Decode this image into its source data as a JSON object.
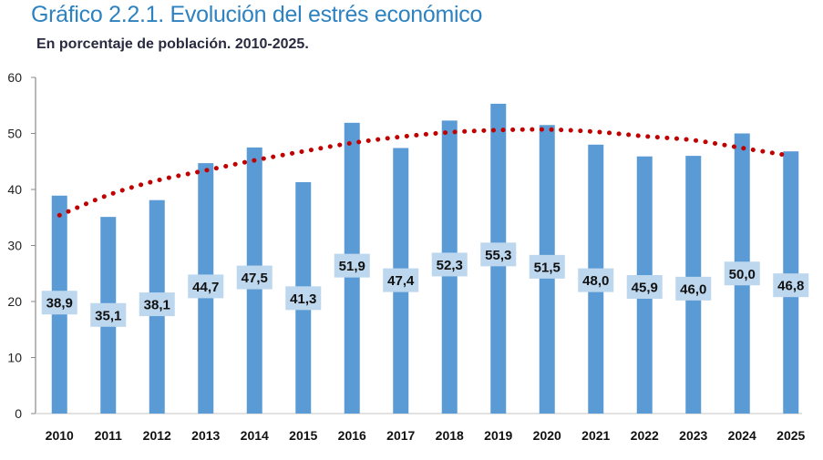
{
  "header": {
    "title": "Gráfico 2.2.1. Evolución del estrés económico",
    "subtitle": "En porcentaje de población. 2010-2025."
  },
  "chart_data": {
    "type": "bar",
    "title": "Gráfico 2.2.1. Evolución del estrés económico",
    "subtitle": "En porcentaje de población. 2010-2025.",
    "xlabel": "",
    "ylabel": "",
    "categories": [
      "2010",
      "2011",
      "2012",
      "2013",
      "2014",
      "2015",
      "2016",
      "2017",
      "2018",
      "2019",
      "2020",
      "2021",
      "2022",
      "2023",
      "2024",
      "2025"
    ],
    "series": [
      {
        "name": "Estrés económico",
        "type": "bar",
        "color": "#5b9bd5",
        "values": [
          38.9,
          35.1,
          38.1,
          44.7,
          47.5,
          41.3,
          51.9,
          47.4,
          52.3,
          55.3,
          51.5,
          48.0,
          45.9,
          46.0,
          50.0,
          46.8
        ],
        "labels": [
          "38,9",
          "35,1",
          "38,1",
          "44,7",
          "47,5",
          "41,3",
          "51,9",
          "47,4",
          "52,3",
          "55,3",
          "51,5",
          "48,0",
          "45,9",
          "46,0",
          "50,0",
          "46,8"
        ]
      },
      {
        "name": "Tendencia polinómica",
        "type": "line",
        "style": "dotted",
        "color": "#c00000",
        "values": [
          35.4,
          39.0,
          41.6,
          43.4,
          45.2,
          46.8,
          48.3,
          49.4,
          50.2,
          50.6,
          50.7,
          50.3,
          49.5,
          48.8,
          47.4,
          46.0
        ]
      }
    ],
    "ylim": [
      0,
      60
    ],
    "yticks": [
      0,
      10,
      20,
      30,
      40,
      50,
      60
    ],
    "data_label_bg": "#bdd7ee",
    "grid": false,
    "legend": "none"
  }
}
